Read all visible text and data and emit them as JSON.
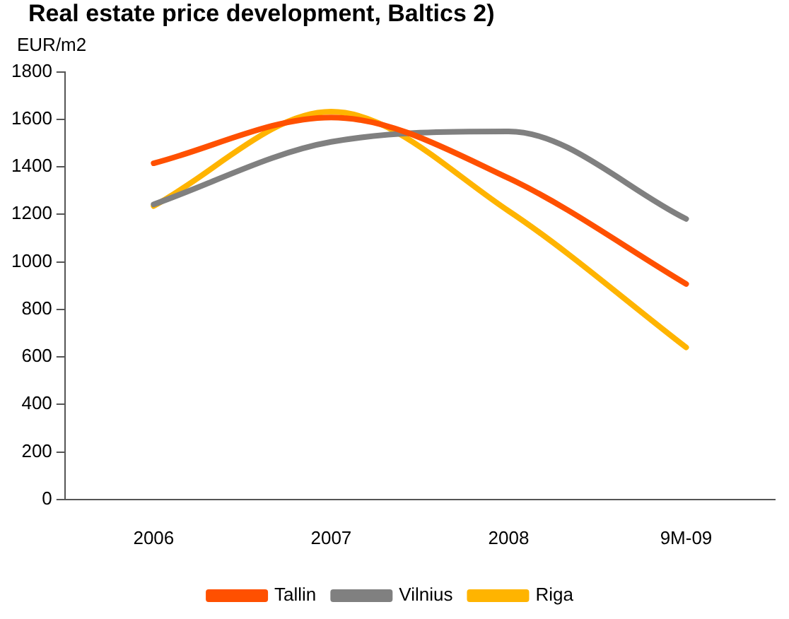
{
  "chart_data": {
    "type": "line",
    "title": "Real estate price development, Baltics 2)",
    "ylabel": "EUR/m2",
    "categories": [
      "2006",
      "2007",
      "2008",
      "9M-09"
    ],
    "series": [
      {
        "name": "Tallin",
        "color": "#ff5000",
        "values": [
          1415,
          1608,
          1352,
          907
        ]
      },
      {
        "name": "Vilnius",
        "color": "#808080",
        "values": [
          1242,
          1505,
          1549,
          1181
        ]
      },
      {
        "name": "Riga",
        "color": "#ffb400",
        "values": [
          1235,
          1632,
          1214,
          640
        ]
      }
    ],
    "ylim": [
      0,
      1800
    ],
    "yticks": [
      0,
      200,
      400,
      600,
      800,
      1000,
      1200,
      1400,
      1600,
      1800
    ],
    "grid": false,
    "legend": "bottom",
    "marker": "none",
    "line_style": "solid"
  }
}
